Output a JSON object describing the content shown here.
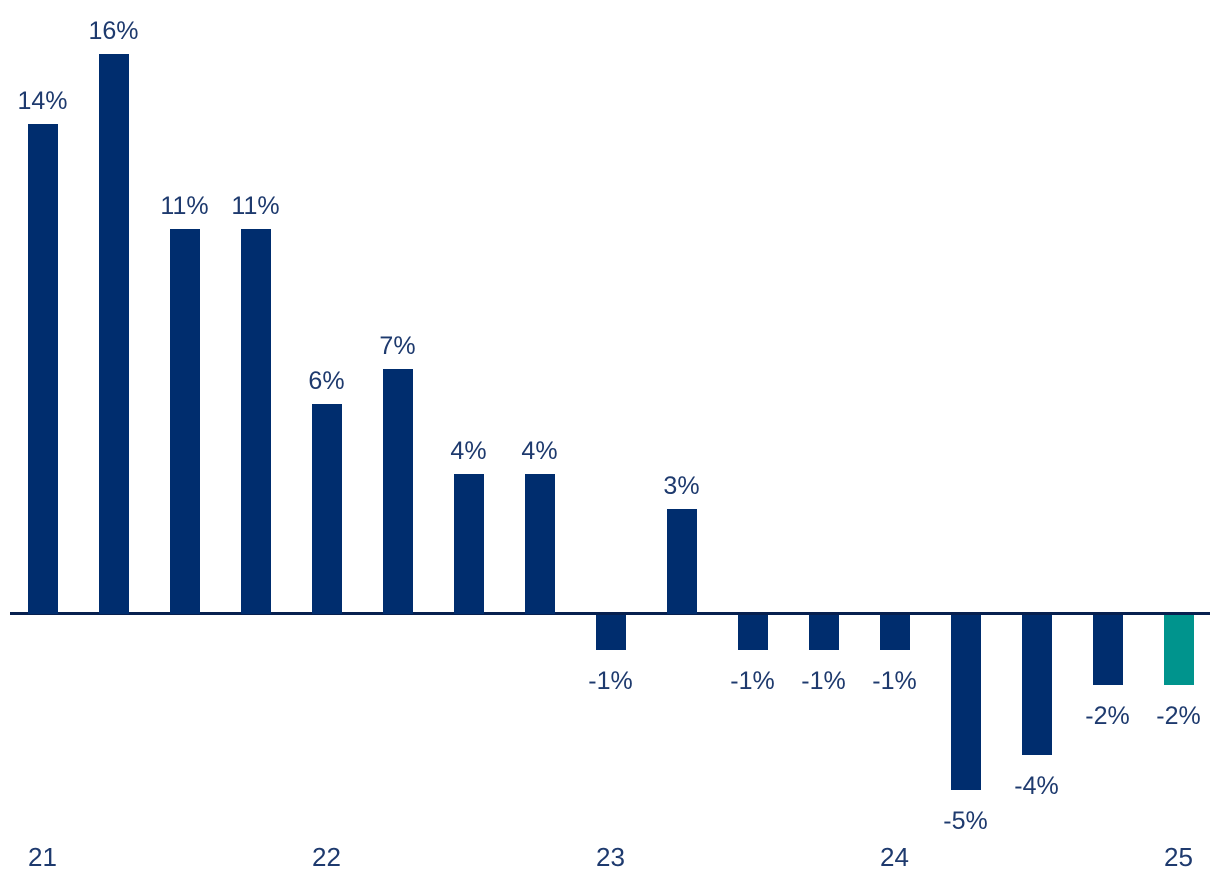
{
  "chart_data": {
    "type": "bar",
    "title": "",
    "xlabel": "",
    "ylabel": "",
    "unit": "%",
    "values": [
      14,
      16,
      11,
      11,
      6,
      7,
      4,
      4,
      -1,
      3,
      -1,
      -1,
      -1,
      -5,
      -4,
      -2,
      -2
    ],
    "data_labels": [
      "14%",
      "16%",
      "11%",
      "11%",
      "6%",
      "7%",
      "4%",
      "4%",
      "-1%",
      "3%",
      "-1%",
      "-1%",
      "-1%",
      "-5%",
      "-4%",
      "-2%",
      "-2%"
    ],
    "x_ticks": [
      {
        "label": "21",
        "bar_index": 0
      },
      {
        "label": "22",
        "bar_index": 4
      },
      {
        "label": "23",
        "bar_index": 8
      },
      {
        "label": "24",
        "bar_index": 12
      },
      {
        "label": "25",
        "bar_index": 16
      }
    ],
    "ticks_note": "year ticks aligned with first quarterly bar of each year",
    "highlight_index": 16,
    "ylim": [
      -6,
      17
    ],
    "grid": false,
    "legend": false,
    "colors": {
      "bar": "#002d6e",
      "highlight_bar": "#00948d",
      "axis_line": "#07204f",
      "label_text": "#1e3a6e"
    }
  }
}
